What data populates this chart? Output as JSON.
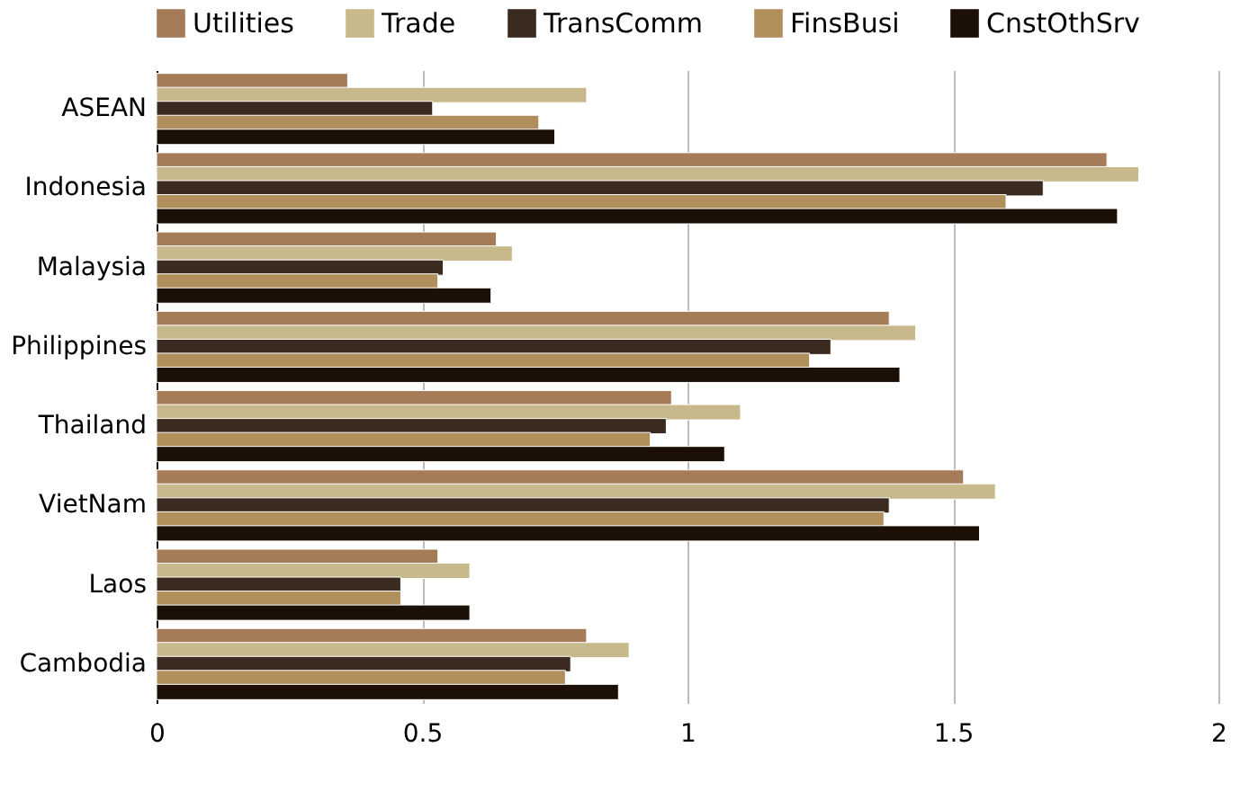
{
  "chart_data": {
    "type": "bar",
    "orientation": "horizontal",
    "categories": [
      "ASEAN",
      "Indonesia",
      "Malaysia",
      "Philippines",
      "Thailand",
      "VietNam",
      "Laos",
      "Cambodia"
    ],
    "series": [
      {
        "name": "Utilities",
        "color": "#a67c58",
        "values": [
          0.36,
          1.79,
          0.64,
          1.38,
          0.97,
          1.52,
          0.53,
          0.81
        ]
      },
      {
        "name": "Trade",
        "color": "#c8b98c",
        "values": [
          0.81,
          1.85,
          0.67,
          1.43,
          1.1,
          1.58,
          0.59,
          0.89
        ]
      },
      {
        "name": "TransComm",
        "color": "#3b2a1f",
        "values": [
          0.52,
          1.67,
          0.54,
          1.27,
          0.96,
          1.38,
          0.46,
          0.78
        ]
      },
      {
        "name": "FinsBusi",
        "color": "#b08f5c",
        "values": [
          0.72,
          1.6,
          0.53,
          1.23,
          0.93,
          1.37,
          0.46,
          0.77
        ]
      },
      {
        "name": "CnstOthSrv",
        "color": "#1c0f05",
        "values": [
          0.75,
          1.81,
          0.63,
          1.4,
          1.07,
          1.55,
          0.59,
          0.87
        ]
      }
    ],
    "xlim": [
      0,
      2
    ],
    "xticks": [
      0,
      0.5,
      1,
      1.5,
      2
    ],
    "grid": "x",
    "legend": "top"
  }
}
